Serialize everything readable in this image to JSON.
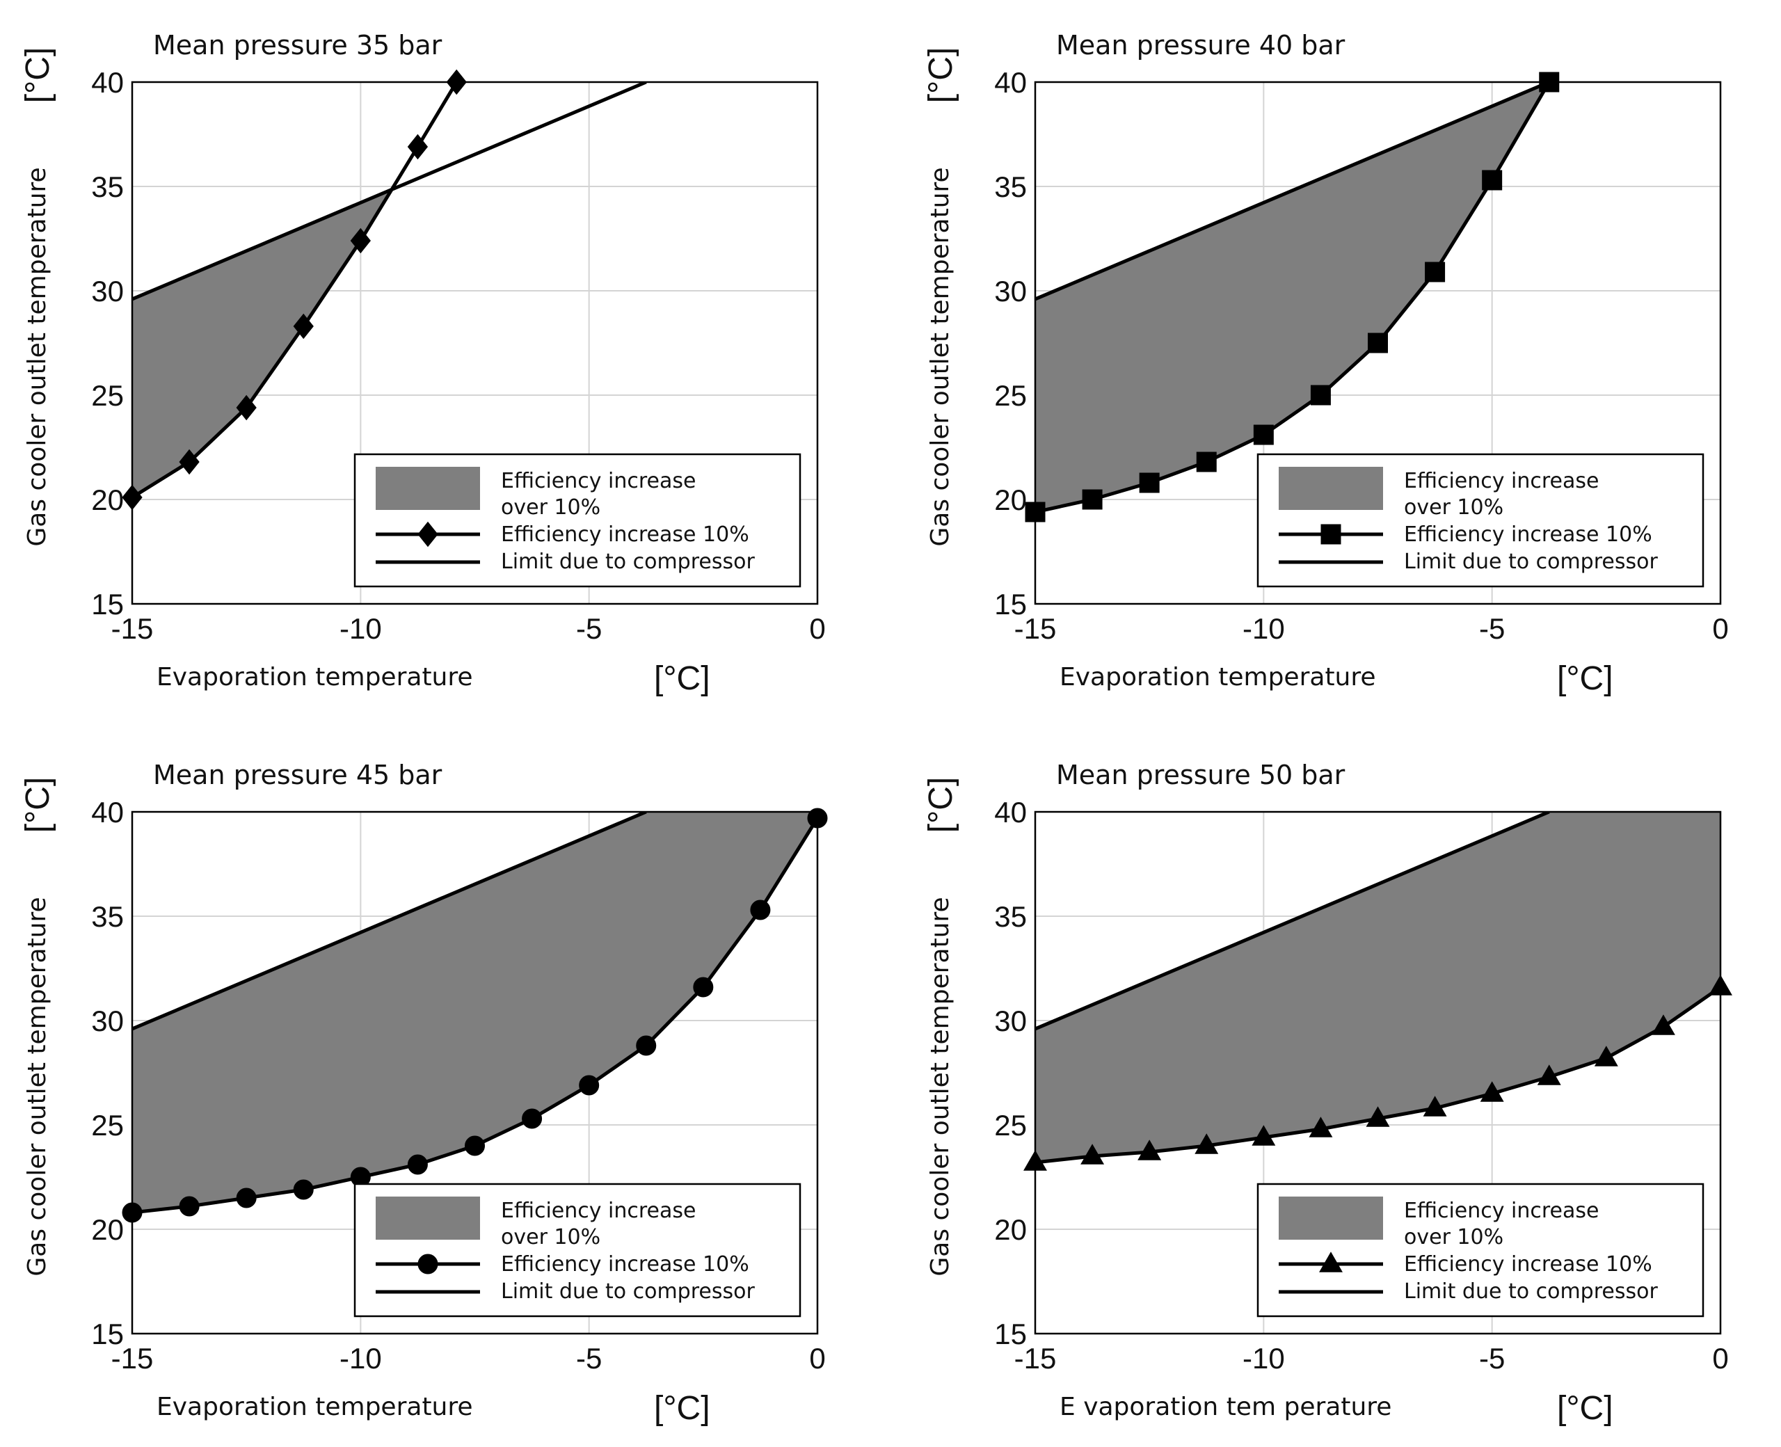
{
  "chart_data": [
    {
      "type": "area",
      "title": "Mean pressure 35 bar",
      "xlabel": "Evaporation temperature",
      "xunit": "[°C]",
      "ylabel": "Gas cooler outlet temperature",
      "yunit": "[°C]",
      "xlim": [
        -15,
        0
      ],
      "ylim": [
        15,
        40
      ],
      "xticks": [
        "-15",
        "-10",
        "-5",
        "0"
      ],
      "yticks": [
        "15",
        "20",
        "25",
        "30",
        "35",
        "40"
      ],
      "grid": true,
      "marker": "diamond",
      "efficiency_curve": {
        "name": "Efficiency increase 10%",
        "x": [
          -15,
          -13.75,
          -12.5,
          -11.25,
          -10,
          -8.75,
          -7.9
        ],
        "y": [
          20.1,
          21.8,
          24.4,
          28.3,
          32.4,
          36.9,
          40.0
        ]
      },
      "compressor_limit": {
        "name": "Limit due to compressor",
        "x": [
          -15,
          -3.75
        ],
        "y": [
          29.6,
          40.0
        ]
      },
      "region": {
        "name": "Efficiency increase over 10%",
        "label_lines": [
          "Efficiency increase",
          "over 10%"
        ],
        "x": [
          -15,
          -15,
          -13.75,
          -12.5,
          -11.25,
          -10,
          -9.35,
          -10,
          -12.5,
          -15
        ],
        "y": [
          29.6,
          20.1,
          21.8,
          24.4,
          28.3,
          32.4,
          34.8,
          34.2,
          31.9,
          29.6
        ]
      },
      "legend_position": "bottom-right"
    },
    {
      "type": "area",
      "title": "Mean pressure 40 bar",
      "xlabel": "Evaporation temperature",
      "xunit": "[°C]",
      "ylabel": "Gas cooler outlet temperature",
      "yunit": "[°C]",
      "xlim": [
        -15,
        0
      ],
      "ylim": [
        15,
        40
      ],
      "xticks": [
        "-15",
        "-10",
        "-5",
        "0"
      ],
      "yticks": [
        "15",
        "20",
        "25",
        "30",
        "35",
        "40"
      ],
      "grid": true,
      "marker": "square",
      "efficiency_curve": {
        "name": "Efficiency increase 10%",
        "x": [
          -15,
          -13.75,
          -12.5,
          -11.25,
          -10,
          -8.75,
          -7.5,
          -6.25,
          -5,
          -3.75
        ],
        "y": [
          19.4,
          20.0,
          20.8,
          21.8,
          23.1,
          25.0,
          27.5,
          30.9,
          35.3,
          40.0
        ]
      },
      "compressor_limit": {
        "name": "Limit due to compressor",
        "x": [
          -15,
          -3.75
        ],
        "y": [
          29.6,
          40.0
        ]
      },
      "region": {
        "name": "Efficiency increase over 10%",
        "label_lines": [
          "Efficiency increase",
          "over 10%"
        ],
        "x": [
          -15,
          -15,
          -13.75,
          -12.5,
          -11.25,
          -10,
          -8.75,
          -7.5,
          -6.25,
          -5,
          -3.75
        ],
        "y": [
          29.6,
          19.4,
          20.0,
          20.8,
          21.8,
          23.1,
          25.0,
          27.5,
          30.9,
          35.3,
          40.0
        ]
      },
      "legend_position": "bottom-right"
    },
    {
      "type": "area",
      "title": "Mean pressure 45 bar",
      "xlabel": "Evaporation temperature",
      "xunit": "[°C]",
      "ylabel": "Gas cooler outlet temperature",
      "yunit": "[°C]",
      "xlim": [
        -15,
        0
      ],
      "ylim": [
        15,
        40
      ],
      "xticks": [
        "-15",
        "-10",
        "-5",
        "0"
      ],
      "yticks": [
        "15",
        "20",
        "25",
        "30",
        "35",
        "40"
      ],
      "grid": true,
      "marker": "circle",
      "efficiency_curve": {
        "name": "Efficiency increase 10%",
        "x": [
          -15,
          -13.75,
          -12.5,
          -11.25,
          -10,
          -8.75,
          -7.5,
          -6.25,
          -5,
          -3.75,
          -2.5,
          -1.25,
          0
        ],
        "y": [
          20.8,
          21.1,
          21.5,
          21.9,
          22.5,
          23.1,
          24.0,
          25.3,
          26.9,
          28.8,
          31.6,
          35.3,
          39.7
        ]
      },
      "compressor_limit": {
        "name": "Limit due to compressor",
        "x": [
          -15,
          -3.75
        ],
        "y": [
          29.6,
          40.0
        ]
      },
      "region": {
        "name": "Efficiency increase over 10%",
        "label_lines": [
          "Efficiency increase",
          "over 10%"
        ],
        "x": [
          -15,
          -15,
          -13.75,
          -12.5,
          -11.25,
          -10,
          -8.75,
          -7.5,
          -6.25,
          -5,
          -3.75,
          -2.5,
          -1.25,
          0,
          0,
          -3.75
        ],
        "y": [
          29.6,
          20.8,
          21.1,
          21.5,
          21.9,
          22.5,
          23.1,
          24.0,
          25.3,
          26.9,
          28.8,
          31.6,
          35.3,
          39.7,
          40.0,
          40.0
        ]
      },
      "legend_position": "bottom-right"
    },
    {
      "type": "area",
      "title": "Mean pressure 50 bar",
      "xlabel": "E vaporation tem perature",
      "xunit": "[°C]",
      "ylabel": "Gas cooler outlet temperature",
      "yunit": "[°C]",
      "xlim": [
        -15,
        0
      ],
      "ylim": [
        15,
        40
      ],
      "xticks": [
        "-15",
        "-10",
        "-5",
        "0"
      ],
      "yticks": [
        "15",
        "20",
        "25",
        "30",
        "35",
        "40"
      ],
      "grid": true,
      "marker": "triangle",
      "efficiency_curve": {
        "name": "Efficiency increase 10%",
        "x": [
          -15,
          -13.75,
          -12.5,
          -11.25,
          -10,
          -8.75,
          -7.5,
          -6.25,
          -5,
          -3.75,
          -2.5,
          -1.25,
          0
        ],
        "y": [
          23.2,
          23.5,
          23.7,
          24.0,
          24.4,
          24.8,
          25.3,
          25.8,
          26.5,
          27.3,
          28.2,
          29.7,
          31.6
        ]
      },
      "compressor_limit": {
        "name": "Limit due to compressor",
        "x": [
          -15,
          -3.75
        ],
        "y": [
          29.6,
          40.0
        ]
      },
      "region": {
        "name": "Efficiency increase over 10%",
        "label_lines": [
          "Efficiency increase",
          "over 10%"
        ],
        "x": [
          -15,
          -15,
          -13.75,
          -12.5,
          -11.25,
          -10,
          -8.75,
          -7.5,
          -6.25,
          -5,
          -3.75,
          -2.5,
          -1.25,
          0,
          0,
          -3.75
        ],
        "y": [
          29.6,
          23.2,
          23.5,
          23.7,
          24.0,
          24.4,
          24.8,
          25.3,
          25.8,
          26.5,
          27.3,
          28.2,
          29.7,
          31.6,
          40.0,
          40.0
        ]
      },
      "legend_position": "bottom-right"
    }
  ]
}
